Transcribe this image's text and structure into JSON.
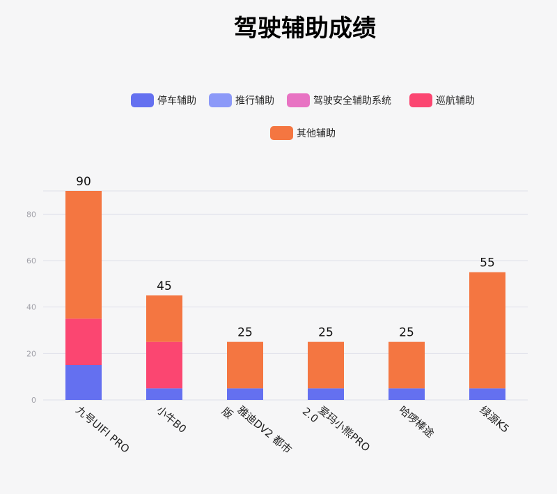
{
  "chart_data": {
    "type": "bar",
    "stacked": true,
    "title": "驾驶辅助成绩",
    "categories": [
      "九号UIFI PRO",
      "小牛B0",
      "雅迪DV2 都市版",
      "爱玛小熊PRO 2.0",
      "哈啰棒途",
      "绿源K5"
    ],
    "category_label_lines": [
      [
        "九号UIFI PRO"
      ],
      [
        "小牛B0"
      ],
      [
        "雅迪DV2 都市",
        "版"
      ],
      [
        "爱玛小熊PRO",
        "2.0"
      ],
      [
        "哈啰棒途"
      ],
      [
        "绿源K5"
      ]
    ],
    "series": [
      {
        "name": "停车辅助",
        "color": "#6470f0",
        "values": [
          15,
          5,
          5,
          5,
          5,
          5
        ]
      },
      {
        "name": "推行辅助",
        "color": "#8c99f8",
        "values": [
          0,
          0,
          0,
          0,
          0,
          0
        ]
      },
      {
        "name": "驾驶安全辅助系统",
        "color": "#e873c3",
        "values": [
          0,
          0,
          0,
          0,
          0,
          0
        ]
      },
      {
        "name": "巡航辅助",
        "color": "#fb4671",
        "values": [
          20,
          20,
          0,
          0,
          0,
          0
        ]
      },
      {
        "name": "其他辅助",
        "color": "#f47641",
        "values": [
          55,
          20,
          20,
          20,
          20,
          50
        ]
      }
    ],
    "totals": [
      90,
      45,
      25,
      25,
      25,
      55
    ],
    "ylim": [
      0,
      90
    ],
    "yticks": [
      0,
      20,
      40,
      60,
      80
    ],
    "grid": true,
    "legend_position": "top"
  }
}
